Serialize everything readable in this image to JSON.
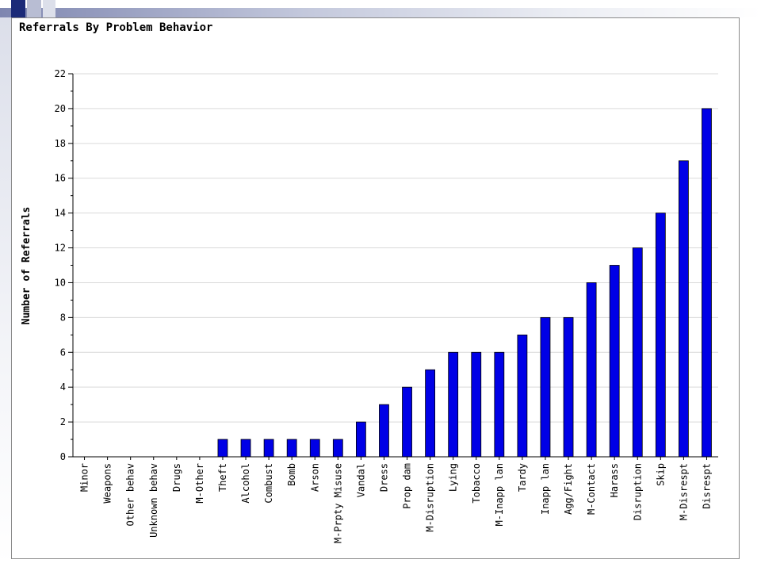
{
  "chart_data": {
    "type": "bar",
    "title": "Referrals By Problem Behavior",
    "xlabel": "",
    "ylabel": "Number of Referrals",
    "ylim": [
      0,
      22
    ],
    "yticks": [
      0,
      2,
      4,
      6,
      8,
      10,
      12,
      14,
      16,
      18,
      20,
      22
    ],
    "grid": true,
    "legend": "none",
    "bar_color": "#0000e6",
    "categories": [
      "Minor",
      "Weapons",
      "Other behav",
      "Unknown behav",
      "Drugs",
      "M-Other",
      "Theft",
      "Alcohol",
      "Combust",
      "Bomb",
      "Arson",
      "M-Prpty Misuse",
      "Vandal",
      "Dress",
      "Prop dam",
      "M-Disruption",
      "Lying",
      "Tobacco",
      "M-Inapp lan",
      "Tardy",
      "Inapp lan",
      "Agg/Fight",
      "M-Contact",
      "Harass",
      "Disruption",
      "Skip",
      "M-Disrespt",
      "Disrespt"
    ],
    "values": [
      0,
      0,
      0,
      0,
      0,
      0,
      1,
      1,
      1,
      1,
      1,
      1,
      2,
      3,
      4,
      5,
      6,
      6,
      6,
      7,
      8,
      8,
      10,
      11,
      12,
      14,
      17,
      20
    ]
  }
}
